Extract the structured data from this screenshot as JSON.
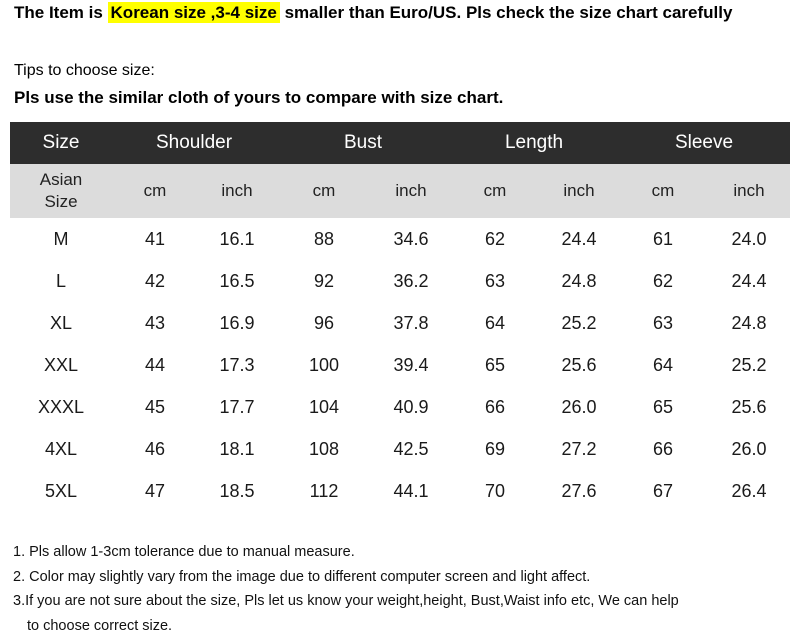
{
  "banner": {
    "prefix": "The Item is ",
    "highlight": "Korean size ,3-4 size",
    "suffix": " smaller than Euro/US. Pls check the size chart carefully"
  },
  "tips": {
    "label": "Tips to choose size:",
    "bold": "Pls use the similar cloth of yours to compare with size chart."
  },
  "table": {
    "headers": [
      "Size",
      "Shoulder",
      "Bust",
      "Length",
      "Sleeve"
    ],
    "sub": {
      "asian_line1": "Asian",
      "asian_line2": "Size",
      "units": [
        "cm",
        "inch",
        "cm",
        "inch",
        "cm",
        "inch",
        "cm",
        "inch"
      ]
    },
    "rows": [
      [
        "M",
        "41",
        "16.1",
        "88",
        "34.6",
        "62",
        "24.4",
        "61",
        "24.0"
      ],
      [
        "L",
        "42",
        "16.5",
        "92",
        "36.2",
        "63",
        "24.8",
        "62",
        "24.4"
      ],
      [
        "XL",
        "43",
        "16.9",
        "96",
        "37.8",
        "64",
        "25.2",
        "63",
        "24.8"
      ],
      [
        "XXL",
        "44",
        "17.3",
        "100",
        "39.4",
        "65",
        "25.6",
        "64",
        "25.2"
      ],
      [
        "XXXL",
        "45",
        "17.7",
        "104",
        "40.9",
        "66",
        "26.0",
        "65",
        "25.6"
      ],
      [
        "4XL",
        "46",
        "18.1",
        "108",
        "42.5",
        "69",
        "27.2",
        "66",
        "26.0"
      ],
      [
        "5XL",
        "47",
        "18.5",
        "112",
        "44.1",
        "70",
        "27.6",
        "67",
        "26.4"
      ]
    ]
  },
  "notes": [
    "1. Pls allow 1-3cm tolerance due to manual measure.",
    "2. Color may slightly vary from the image due to different computer screen and light affect.",
    "3.If you are not sure about the size, Pls let us know your weight,height, Bust,Waist info etc, We can help",
    "to choose correct size."
  ],
  "colors": {
    "highlight": "#ffff00",
    "header_bg": "#2d2d2d",
    "subheader_bg": "#dcdcdc"
  }
}
